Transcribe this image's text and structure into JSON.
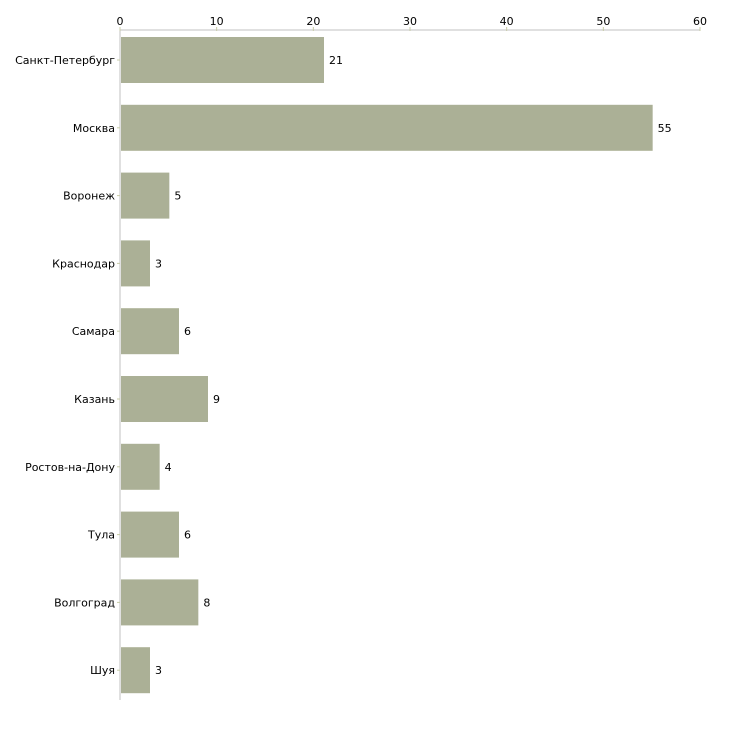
{
  "chart_data": {
    "type": "bar",
    "orientation": "horizontal",
    "title": "",
    "xlabel": "",
    "ylabel": "",
    "xlim": [
      0,
      60
    ],
    "x_ticks": [
      0,
      10,
      20,
      30,
      40,
      50,
      60
    ],
    "tick_labels": [
      "0",
      "10",
      "20",
      "30",
      "40",
      "50",
      "60"
    ],
    "categories": [
      "Санкт-Петербург",
      "Москва",
      "Воронеж",
      "Краснодар",
      "Самара",
      "Казань",
      "Ростов-на-Дону",
      "Тула",
      "Волгоград",
      "Шуя"
    ],
    "values": [
      21,
      55,
      5,
      3,
      6,
      9,
      4,
      6,
      8,
      3
    ],
    "value_labels": [
      "21",
      "55",
      "5",
      "3",
      "6",
      "9",
      "4",
      "6",
      "8",
      "3"
    ],
    "grid": false,
    "axis_position": "top",
    "colors": {
      "bar": "#abb096",
      "axis": "#c0c0c0",
      "tick": "#c8cca8"
    }
  }
}
